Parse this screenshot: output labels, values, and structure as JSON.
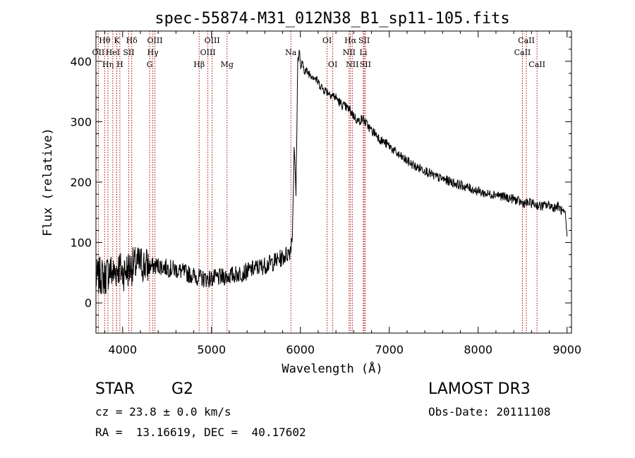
{
  "chart_data": {
    "type": "line",
    "title": "spec-55874-M31_012N38_B1_sp11-105.fits",
    "xlabel": "Wavelength (Å)",
    "ylabel": "Flux (relative)",
    "xlim": [
      3700,
      9050
    ],
    "ylim": [
      -50,
      450
    ],
    "x_ticks": [
      4000,
      5000,
      6000,
      7000,
      8000,
      9000
    ],
    "y_ticks": [
      0,
      100,
      200,
      300,
      400
    ],
    "series": [
      {
        "name": "flux",
        "x": [
          3700,
          3750,
          3800,
          3850,
          3900,
          3950,
          4000,
          4100,
          4200,
          4300,
          4400,
          4500,
          4600,
          4700,
          4800,
          4900,
          5000,
          5100,
          5200,
          5300,
          5400,
          5500,
          5600,
          5700,
          5800,
          5880,
          5910,
          5930,
          5950,
          5970,
          5990,
          6000,
          6020,
          6050,
          6100,
          6150,
          6200,
          6250,
          6300,
          6350,
          6400,
          6450,
          6500,
          6550,
          6600,
          6650,
          6700,
          6750,
          6800,
          6850,
          6900,
          7000,
          7100,
          7200,
          7300,
          7400,
          7500,
          7600,
          7700,
          7800,
          7900,
          8000,
          8100,
          8200,
          8300,
          8400,
          8500,
          8600,
          8700,
          8800,
          8850,
          8900,
          8950,
          8980,
          9000
        ],
        "values": [
          40,
          45,
          42,
          55,
          48,
          60,
          50,
          60,
          65,
          60,
          62,
          58,
          55,
          50,
          45,
          40,
          40,
          42,
          45,
          48,
          52,
          58,
          62,
          68,
          75,
          85,
          110,
          260,
          180,
          400,
          420,
          390,
          395,
          385,
          380,
          375,
          365,
          355,
          350,
          345,
          340,
          330,
          325,
          320,
          310,
          300,
          305,
          295,
          285,
          280,
          270,
          260,
          245,
          235,
          225,
          220,
          210,
          205,
          200,
          195,
          190,
          185,
          180,
          180,
          175,
          172,
          165,
          165,
          160,
          162,
          158,
          160,
          150,
          145,
          110
        ]
      }
    ],
    "lines": [
      {
        "label": "Hθ",
        "x": 3798,
        "row": 1
      },
      {
        "label": "OII",
        "x": 3727,
        "row": 2
      },
      {
        "label": "Hη",
        "x": 3835,
        "row": 3
      },
      {
        "label": "K",
        "x": 3934,
        "row": 1
      },
      {
        "label": "HeI",
        "x": 3889,
        "row": 2
      },
      {
        "label": "H",
        "x": 3969,
        "row": 3
      },
      {
        "label": "SII",
        "x": 4069,
        "row": 2
      },
      {
        "label": "Hδ",
        "x": 4102,
        "row": 1
      },
      {
        "label": "OIII",
        "x": 4363,
        "row": 1
      },
      {
        "label": "Hγ",
        "x": 4340,
        "row": 2
      },
      {
        "label": "G",
        "x": 4304,
        "row": 3
      },
      {
        "label": "Hβ",
        "x": 4861,
        "row": 3
      },
      {
        "label": "OIII",
        "x": 5007,
        "row": 1
      },
      {
        "label": "OIII",
        "x": 4959,
        "row": 2
      },
      {
        "label": "Mg",
        "x": 5175,
        "row": 3
      },
      {
        "label": "Na",
        "x": 5893,
        "row": 2
      },
      {
        "label": "OI",
        "x": 6300,
        "row": 1
      },
      {
        "label": "OI",
        "x": 6364,
        "row": 3
      },
      {
        "label": "Hα",
        "x": 6563,
        "row": 1
      },
      {
        "label": "NII",
        "x": 6548,
        "row": 2
      },
      {
        "label": "NII",
        "x": 6584,
        "row": 3
      },
      {
        "label": "SII",
        "x": 6717,
        "row": 1
      },
      {
        "label": "Li",
        "x": 6708,
        "row": 2
      },
      {
        "label": "SII",
        "x": 6731,
        "row": 3
      },
      {
        "label": "CaII",
        "x": 8542,
        "row": 1
      },
      {
        "label": "CaII",
        "x": 8498,
        "row": 2
      },
      {
        "label": "CaII",
        "x": 8662,
        "row": 3
      }
    ]
  },
  "info": {
    "object_class": "STAR",
    "subclass": "G2",
    "survey": "LAMOST DR3",
    "cz": "cz = 23.8 ± 0.0 km/s",
    "obs_date": "Obs-Date: 20111108",
    "coords": "RA =  13.16619, DEC =  40.17602"
  },
  "colors": {
    "spectrum": "#000000",
    "line_markers": "#b30000",
    "background": "#ffffff"
  }
}
